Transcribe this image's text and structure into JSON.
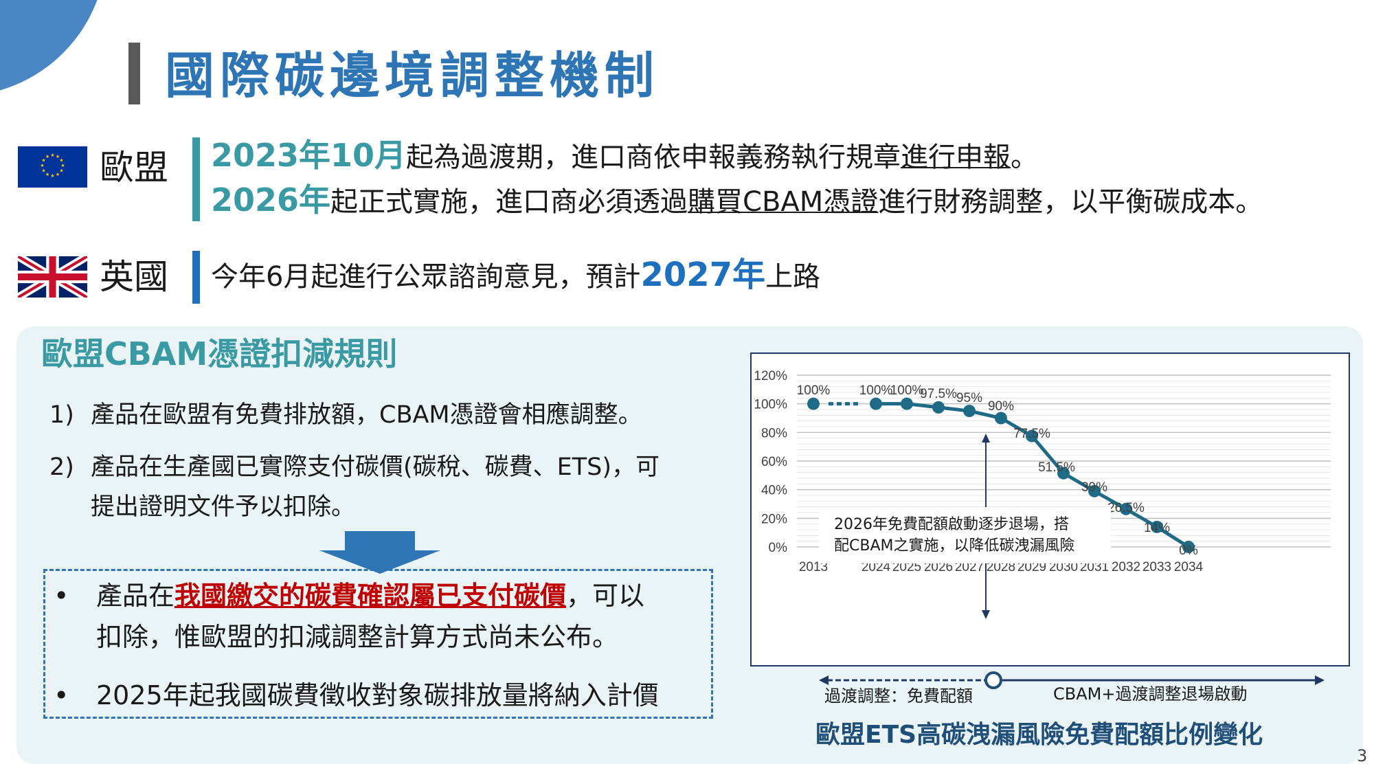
{
  "slide": {
    "title": "國際碳邊境調整機制",
    "page_number": "3"
  },
  "eu": {
    "name": "歐盟",
    "line1": {
      "hl": "2023年10月",
      "mid": "起為過渡期，進口商依申報義務執行規章",
      "ul": "進行申報",
      "end": "。"
    },
    "line2": {
      "hl": "2026年",
      "mid": "起正式實施，進口商必須透過",
      "ul": "購買CBAM憑證",
      "end": "進行財務調整，以平衡碳成本。"
    }
  },
  "uk": {
    "name": "英國",
    "pre": "今年6月起進行公眾諮詢意見，預計",
    "hl": "2027年",
    "post": "上路"
  },
  "rules": {
    "title": "歐盟CBAM憑證扣減規則",
    "items": [
      {
        "num": "1)",
        "lines": [
          "產品在歐盟有免費排放額，CBAM憑證會相應調整。"
        ]
      },
      {
        "num": "2)",
        "lines": [
          "產品在生產國已實際支付碳價(碳稅、碳費、ETS)，可",
          "提出證明文件予以扣除。"
        ]
      }
    ],
    "bullets": [
      {
        "dot": "•",
        "pre": "產品在",
        "ul": "我國繳交的碳費確認屬已支付碳價",
        "post": "，可以",
        "line2": "扣除，惟歐盟的扣減調整計算方式尚未公布。"
      },
      {
        "dot": "•",
        "text": "2025年起我國碳費徵收對象碳排放量將納入計價"
      }
    ]
  },
  "chart_data": {
    "type": "line",
    "title": "歐盟ETS高碳洩漏風險免費配額比例變化",
    "categories": [
      "2013",
      "2024",
      "2025",
      "2026",
      "2027",
      "2028",
      "2029",
      "2030",
      "2031",
      "2032",
      "2033",
      "2034"
    ],
    "series": [
      {
        "values": [
          100,
          100,
          100,
          97.5,
          95,
          90,
          77.5,
          51.5,
          39,
          26.5,
          14,
          0
        ]
      }
    ],
    "data_labels": [
      "100%",
      "100%",
      "100%",
      "97.5%",
      "95%",
      "90%",
      "77.5%",
      "51.5%",
      "39%",
      "26.5%",
      "14%",
      "0%"
    ],
    "yticks": [
      "0%",
      "20%",
      "40%",
      "60%",
      "80%",
      "100%",
      "120%"
    ],
    "ylim": [
      0,
      120
    ],
    "grid": true,
    "line_color": "#1f6a86",
    "annotation": {
      "line1": "2026年免費配額啟動逐步退場，搭",
      "line2": "配CBAM之實施，以降低碳洩漏風險"
    }
  },
  "timeline": {
    "left_label": "過渡調整：免費配額",
    "right_label": "CBAM+過渡調整退場啟動"
  },
  "colors": {
    "title_blue": "#2e75b6",
    "teal": "#3a9aa3",
    "highlight_blue": "#1f6fbf",
    "red": "#c00000",
    "panel_bg": "#eaf3f5",
    "caption": "#1f4e79"
  },
  "icons": [
    "eu-flag-icon",
    "uk-flag-icon",
    "down-arrow-icon"
  ]
}
